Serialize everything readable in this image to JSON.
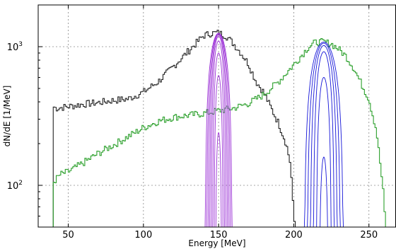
{
  "chart_data": {
    "type": "line",
    "step": true,
    "xlabel": "Energy [MeV]",
    "ylabel": "dN/dE [1/MeV]",
    "xlim": [
      30,
      268
    ],
    "ylim": [
      50,
      2000
    ],
    "yscale": "log",
    "grid": true,
    "xticks": [
      50,
      100,
      150,
      200,
      250
    ],
    "yticks": [
      {
        "value": 100,
        "label": "10",
        "exp": "2"
      },
      {
        "value": 1000,
        "label": "10",
        "exp": "3"
      }
    ],
    "series": [
      {
        "color": "#222222",
        "x": [
          40,
          42,
          50,
          60,
          70,
          80,
          90,
          100,
          110,
          120,
          130,
          140,
          145,
          150,
          155,
          160,
          165,
          170,
          175,
          180,
          185,
          190,
          195,
          198,
          200,
          201
        ],
        "y": [
          370,
          360,
          370,
          385,
          395,
          410,
          420,
          470,
          560,
          720,
          930,
          1200,
          1250,
          1260,
          1200,
          1050,
          900,
          750,
          560,
          470,
          360,
          280,
          200,
          140,
          60,
          50
        ]
      },
      {
        "color": "#2ca02c",
        "x": [
          40,
          45,
          50,
          60,
          70,
          80,
          90,
          100,
          110,
          120,
          130,
          140,
          150,
          160,
          170,
          180,
          190,
          200,
          210,
          215,
          220,
          225,
          230,
          235,
          240,
          245,
          250,
          255,
          258,
          260,
          261
        ],
        "y": [
          105,
          120,
          125,
          145,
          170,
          195,
          225,
          260,
          290,
          310,
          320,
          330,
          345,
          360,
          390,
          450,
          560,
          740,
          1000,
          1080,
          1080,
          1050,
          960,
          850,
          700,
          540,
          420,
          250,
          130,
          80,
          50
        ]
      },
      {
        "color": "#9b30d6",
        "type": "peaks",
        "center": 150,
        "half_widths": [
          9,
          8,
          7,
          6,
          5,
          4,
          3,
          2
        ],
        "peak_values": [
          1250,
          1240,
          1220,
          1190,
          1100,
          900,
          620,
          240
        ]
      },
      {
        "color": "#1515d8",
        "type": "peaks",
        "center": 220,
        "half_widths": [
          13,
          11,
          9,
          7,
          5,
          3
        ],
        "peak_values": [
          1080,
          1060,
          1020,
          920,
          600,
          160
        ]
      }
    ]
  }
}
